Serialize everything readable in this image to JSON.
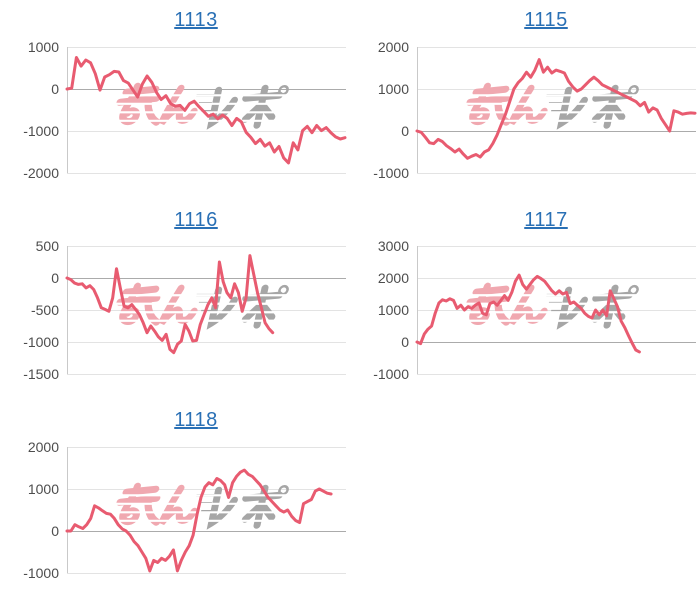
{
  "page": {
    "background": "#ffffff"
  },
  "style": {
    "line_color": "#e85b70",
    "grid_color": "#e3e3e3",
    "zero_line_color": "#ababab",
    "axis_line_color": "#c9c9c9",
    "label_color": "#4d4d4d",
    "title_color": "#2a70b5",
    "watermark_pink": "#f0a8b0",
    "watermark_gray": "#a6a6a6"
  },
  "watermark": {
    "text": "みんレポ",
    "text_pink": "みん",
    "text_gray": "レポ"
  },
  "chart_data": [
    {
      "type": "line",
      "title": "1113",
      "y_tick_labels": [
        "1000",
        "0",
        "-1000",
        "-2000"
      ],
      "ymax": 1000,
      "ymin": -2000,
      "x_span": 1.0,
      "values": [
        0,
        20,
        750,
        545,
        690,
        625,
        365,
        -25,
        285,
        340,
        420,
        405,
        200,
        140,
        -25,
        -190,
        120,
        310,
        160,
        -80,
        -250,
        -160,
        -350,
        -410,
        -390,
        -510,
        -350,
        -290,
        -420,
        -530,
        -650,
        -600,
        -710,
        -620,
        -700,
        -870,
        -700,
        -780,
        -1030,
        -1150,
        -1300,
        -1200,
        -1360,
        -1280,
        -1500,
        -1370,
        -1640,
        -1760,
        -1280,
        -1450,
        -990,
        -890,
        -1040,
        -870,
        -990,
        -920,
        -1040,
        -1140,
        -1190,
        -1160
      ]
    },
    {
      "type": "line",
      "title": "1115",
      "y_tick_labels": [
        "2000",
        "1000",
        "0",
        "-1000"
      ],
      "ymax": 2000,
      "ymin": -1000,
      "x_span": 1.0,
      "values": [
        0,
        -30,
        -150,
        -280,
        -300,
        -200,
        -250,
        -350,
        -420,
        -500,
        -430,
        -550,
        -650,
        -600,
        -560,
        -620,
        -500,
        -450,
        -300,
        -100,
        150,
        400,
        700,
        1000,
        1150,
        1250,
        1400,
        1280,
        1450,
        1700,
        1400,
        1520,
        1380,
        1450,
        1420,
        1380,
        1180,
        1050,
        950,
        1000,
        1100,
        1200,
        1280,
        1200,
        1100,
        1050,
        1000,
        950,
        900,
        850,
        800,
        750,
        700,
        600,
        680,
        450,
        550,
        500,
        300,
        150,
        0,
        480,
        450,
        400,
        420,
        430,
        425
      ]
    },
    {
      "type": "line",
      "title": "1116",
      "y_tick_labels": [
        "500",
        "0",
        "-500",
        "-1000",
        "-1500"
      ],
      "ymax": 500,
      "ymin": -1500,
      "x_span": 0.74,
      "values": [
        0,
        -25,
        -80,
        -100,
        -90,
        -155,
        -120,
        -180,
        -310,
        -465,
        -490,
        -520,
        -310,
        145,
        -155,
        -440,
        -465,
        -415,
        -490,
        -570,
        -700,
        -855,
        -750,
        -830,
        -920,
        -975,
        -880,
        -1115,
        -1165,
        -1035,
        -985,
        -725,
        -830,
        -985,
        -975,
        -725,
        -570,
        -415,
        -310,
        -465,
        250,
        -60,
        -230,
        -310,
        -90,
        -230,
        -520,
        -310,
        350,
        60,
        -230,
        -460,
        -700,
        -790,
        -855
      ]
    },
    {
      "type": "line",
      "title": "1117",
      "y_tick_labels": [
        "3000",
        "2000",
        "1000",
        "0",
        "-1000"
      ],
      "ymax": 3000,
      "ymin": -1000,
      "x_span": 0.8,
      "values": [
        0,
        -50,
        250,
        400,
        500,
        900,
        1220,
        1320,
        1280,
        1350,
        1300,
        1050,
        1150,
        1000,
        1100,
        1050,
        1150,
        1220,
        900,
        850,
        1200,
        1250,
        1150,
        1300,
        1450,
        1300,
        1550,
        1900,
        2090,
        1800,
        1650,
        1800,
        1950,
        2050,
        1980,
        1900,
        1750,
        1600,
        1500,
        1600,
        1500,
        1550,
        1200,
        1250,
        1150,
        1050,
        900,
        800,
        750,
        1000,
        850,
        1000,
        820,
        1600,
        1350,
        1100,
        650,
        450,
        200,
        -30,
        -250,
        -310
      ]
    },
    {
      "type": "line",
      "title": "1118",
      "y_tick_labels": [
        "2000",
        "1000",
        "0",
        "-1000"
      ],
      "ymax": 2000,
      "ymin": -1000,
      "x_span": 0.95,
      "values": [
        0,
        0,
        150,
        100,
        60,
        150,
        300,
        600,
        550,
        480,
        420,
        400,
        300,
        150,
        50,
        0,
        -100,
        -250,
        -350,
        -500,
        -650,
        -950,
        -700,
        -750,
        -650,
        -700,
        -600,
        -450,
        -950,
        -700,
        -500,
        -350,
        -100,
        400,
        800,
        1050,
        1150,
        1100,
        1250,
        1200,
        1100,
        800,
        1150,
        1300,
        1400,
        1450,
        1350,
        1300,
        1200,
        1100,
        950,
        800,
        700,
        600,
        500,
        450,
        500,
        350,
        250,
        200,
        650,
        700,
        750,
        950,
        1000,
        950,
        900,
        880
      ]
    }
  ]
}
